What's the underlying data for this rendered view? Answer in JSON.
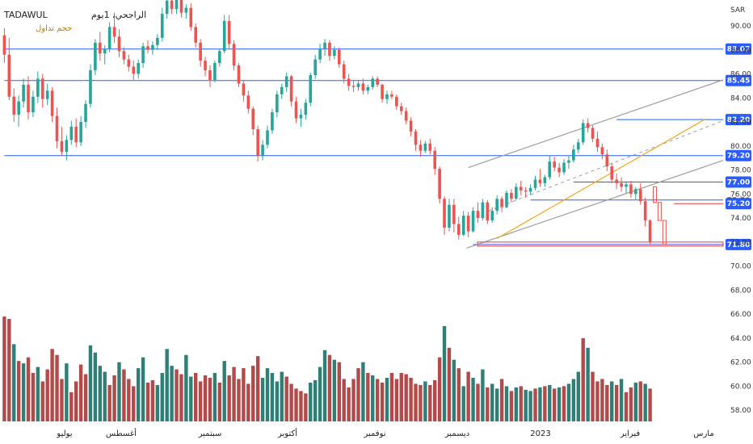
{
  "header": {
    "symbol": "TADAWUL",
    "title": "الراجحي، 1يوم",
    "volume_label": "حجم تداول"
  },
  "colors": {
    "up": "#26a69a",
    "down": "#ef5350",
    "vol_up": "#2f7f77",
    "vol_down": "#b24a4a",
    "level": "#2a5cff",
    "channel": "#9e9e9e",
    "trend": "#f5a623",
    "red_line": "#e53935",
    "badge_bg": "#2a5cff"
  },
  "chart_data": {
    "type": "candlestick",
    "currency": "SAR",
    "ylim": [
      57.5,
      92.5
    ],
    "y_ticks": [
      "90.00",
      "88.00",
      "86.00",
      "84.00",
      "82.00",
      "80.00",
      "78.00",
      "76.00",
      "74.00",
      "72.00",
      "70.00",
      "68.00",
      "66.00",
      "64.00",
      "62.00",
      "60.00",
      "58.00"
    ],
    "x_labels": [
      "يوليو",
      "أغسطس",
      "سبتمبر",
      "أكتوبر",
      "نوفمبر",
      "ديسمبر",
      "2023",
      "فبراير",
      "مارس"
    ],
    "levels": [
      {
        "label": "88.07",
        "value": 88.07,
        "style": "badge"
      },
      {
        "label": "85.45",
        "value": 85.45,
        "style": "badge"
      },
      {
        "label": "82.20",
        "value": 82.2,
        "style": "badge"
      },
      {
        "label": "79.20",
        "value": 79.2,
        "style": "badge"
      },
      {
        "label": "77.00",
        "value": 77.0,
        "style": "badge"
      },
      {
        "label": "75.50",
        "value": 75.5,
        "style": "plain"
      },
      {
        "label": "75.20",
        "value": 75.2,
        "style": "badge"
      },
      {
        "label": "71.80",
        "value": 71.8,
        "style": "badge"
      }
    ],
    "candles": [
      [
        89.2,
        89.8,
        86.9,
        87.6
      ],
      [
        87.6,
        89.0,
        83.8,
        84.1
      ],
      [
        84.1,
        84.8,
        82.0,
        82.6
      ],
      [
        82.6,
        84.2,
        81.6,
        83.7
      ],
      [
        83.7,
        85.6,
        83.2,
        85.1
      ],
      [
        85.1,
        85.8,
        82.2,
        82.8
      ],
      [
        82.8,
        84.6,
        82.4,
        84.1
      ],
      [
        84.1,
        86.2,
        83.6,
        85.6
      ],
      [
        85.6,
        86.0,
        83.2,
        83.9
      ],
      [
        83.9,
        85.2,
        83.4,
        84.6
      ],
      [
        84.6,
        84.9,
        82.0,
        82.5
      ],
      [
        82.5,
        83.2,
        79.8,
        80.4
      ],
      [
        80.4,
        81.6,
        79.2,
        79.5
      ],
      [
        79.5,
        80.9,
        78.8,
        80.5
      ],
      [
        80.5,
        82.1,
        80.1,
        81.6
      ],
      [
        81.6,
        82.3,
        79.9,
        80.3
      ],
      [
        80.3,
        82.5,
        80.0,
        82.0
      ],
      [
        82.0,
        83.8,
        81.5,
        83.5
      ],
      [
        83.5,
        86.8,
        83.2,
        86.3
      ],
      [
        86.3,
        88.9,
        85.9,
        88.6
      ],
      [
        88.6,
        89.5,
        87.1,
        87.7
      ],
      [
        87.7,
        88.4,
        86.8,
        88.1
      ],
      [
        88.1,
        90.3,
        87.8,
        89.9
      ],
      [
        89.9,
        91.1,
        88.6,
        89.1
      ],
      [
        89.1,
        89.7,
        87.4,
        87.9
      ],
      [
        87.9,
        88.2,
        86.8,
        87.2
      ],
      [
        87.2,
        87.6,
        86.2,
        86.6
      ],
      [
        86.6,
        87.1,
        85.5,
        86.0
      ],
      [
        86.0,
        87.2,
        85.6,
        86.9
      ],
      [
        86.9,
        88.6,
        86.5,
        88.3
      ],
      [
        88.3,
        88.8,
        87.7,
        88.0
      ],
      [
        88.0,
        88.7,
        87.6,
        88.4
      ],
      [
        88.4,
        89.3,
        88.0,
        89.0
      ],
      [
        89.0,
        91.5,
        88.7,
        91.0
      ],
      [
        91.0,
        92.6,
        90.6,
        92.1
      ],
      [
        92.1,
        92.6,
        91.0,
        91.4
      ],
      [
        91.4,
        92.5,
        91.0,
        92.2
      ],
      [
        92.2,
        92.3,
        90.7,
        91.1
      ],
      [
        91.1,
        91.8,
        90.6,
        91.5
      ],
      [
        91.5,
        91.9,
        89.6,
        89.9
      ],
      [
        89.9,
        90.2,
        88.2,
        88.6
      ],
      [
        88.6,
        88.9,
        86.6,
        87.1
      ],
      [
        87.1,
        87.4,
        85.8,
        86.3
      ],
      [
        86.3,
        86.7,
        84.9,
        85.5
      ],
      [
        85.5,
        87.1,
        85.3,
        86.9
      ],
      [
        86.9,
        88.1,
        86.6,
        87.9
      ],
      [
        87.9,
        90.9,
        87.7,
        90.4
      ],
      [
        90.4,
        90.9,
        88.1,
        88.5
      ],
      [
        88.5,
        88.8,
        86.3,
        86.7
      ],
      [
        86.7,
        86.9,
        84.9,
        85.2
      ],
      [
        85.2,
        85.4,
        83.7,
        84.2
      ],
      [
        84.2,
        84.6,
        82.7,
        83.1
      ],
      [
        83.1,
        83.3,
        80.9,
        81.4
      ],
      [
        81.4,
        81.7,
        78.7,
        79.2
      ],
      [
        79.2,
        80.5,
        78.8,
        80.1
      ],
      [
        80.1,
        81.7,
        79.8,
        81.3
      ],
      [
        81.3,
        83.1,
        81.0,
        82.8
      ],
      [
        82.8,
        84.6,
        82.4,
        84.3
      ],
      [
        84.3,
        85.2,
        83.9,
        84.9
      ],
      [
        84.9,
        86.1,
        84.5,
        85.8
      ],
      [
        85.8,
        85.9,
        83.3,
        83.7
      ],
      [
        83.7,
        84.1,
        81.9,
        82.3
      ],
      [
        82.3,
        83.1,
        81.6,
        82.6
      ],
      [
        82.6,
        83.9,
        82.2,
        83.6
      ],
      [
        83.6,
        86.1,
        83.3,
        85.9
      ],
      [
        85.9,
        87.6,
        85.6,
        87.2
      ],
      [
        87.2,
        88.5,
        86.9,
        88.1
      ],
      [
        88.1,
        88.9,
        87.5,
        88.6
      ],
      [
        88.6,
        88.8,
        87.1,
        87.5
      ],
      [
        87.5,
        88.3,
        87.2,
        88.0
      ],
      [
        88.0,
        88.2,
        86.5,
        86.8
      ],
      [
        86.8,
        87.1,
        85.2,
        85.6
      ],
      [
        85.6,
        86.0,
        84.6,
        85.0
      ],
      [
        85.0,
        85.5,
        84.5,
        84.9
      ],
      [
        84.9,
        85.4,
        84.6,
        85.2
      ],
      [
        85.2,
        85.6,
        84.3,
        84.6
      ],
      [
        84.6,
        85.1,
        84.3,
        84.9
      ],
      [
        84.9,
        85.8,
        84.7,
        85.6
      ],
      [
        85.6,
        85.8,
        84.9,
        85.1
      ],
      [
        85.1,
        85.2,
        83.6,
        83.9
      ],
      [
        83.9,
        84.6,
        83.5,
        84.3
      ],
      [
        84.3,
        84.6,
        83.9,
        84.1
      ],
      [
        84.1,
        84.3,
        83.0,
        83.3
      ],
      [
        83.3,
        83.6,
        82.6,
        82.9
      ],
      [
        82.9,
        83.2,
        81.8,
        82.1
      ],
      [
        82.1,
        82.4,
        80.8,
        81.2
      ],
      [
        81.2,
        81.4,
        79.6,
        80.1
      ],
      [
        80.1,
        80.5,
        79.1,
        79.6
      ],
      [
        79.6,
        80.4,
        79.4,
        80.2
      ],
      [
        80.2,
        80.6,
        79.3,
        79.6
      ],
      [
        79.6,
        79.9,
        77.6,
        78.1
      ],
      [
        78.1,
        78.3,
        75.2,
        75.6
      ],
      [
        75.6,
        75.8,
        72.6,
        73.2
      ],
      [
        73.2,
        75.6,
        72.9,
        75.1
      ],
      [
        75.1,
        75.6,
        72.8,
        73.5
      ],
      [
        73.5,
        74.1,
        72.2,
        72.6
      ],
      [
        72.6,
        74.6,
        72.5,
        74.2
      ],
      [
        74.2,
        74.5,
        72.4,
        72.9
      ],
      [
        72.9,
        74.9,
        72.8,
        74.6
      ],
      [
        74.6,
        75.3,
        73.6,
        74.0
      ],
      [
        74.0,
        75.6,
        73.8,
        75.3
      ],
      [
        75.3,
        75.5,
        73.5,
        73.8
      ],
      [
        73.8,
        74.9,
        73.6,
        74.6
      ],
      [
        74.6,
        75.9,
        74.3,
        75.6
      ],
      [
        75.6,
        75.8,
        74.5,
        74.9
      ],
      [
        74.9,
        76.3,
        74.8,
        76.1
      ],
      [
        76.1,
        76.4,
        75.3,
        75.6
      ],
      [
        75.6,
        76.9,
        75.5,
        76.6
      ],
      [
        76.6,
        77.1,
        75.9,
        76.3
      ],
      [
        76.3,
        76.6,
        75.7,
        76.2
      ],
      [
        76.2,
        76.8,
        75.9,
        76.5
      ],
      [
        76.5,
        77.5,
        76.3,
        77.2
      ],
      [
        77.2,
        78.1,
        76.6,
        76.9
      ],
      [
        76.9,
        77.6,
        76.6,
        77.4
      ],
      [
        77.4,
        79.2,
        77.2,
        78.7
      ],
      [
        78.7,
        79.1,
        77.9,
        78.2
      ],
      [
        78.2,
        78.6,
        77.4,
        77.8
      ],
      [
        77.8,
        78.9,
        77.6,
        78.6
      ],
      [
        78.6,
        79.2,
        78.1,
        78.8
      ],
      [
        78.8,
        80.1,
        78.6,
        79.7
      ],
      [
        79.7,
        80.6,
        79.4,
        80.3
      ],
      [
        80.3,
        82.2,
        80.1,
        81.9
      ],
      [
        81.9,
        82.3,
        81.1,
        81.5
      ],
      [
        81.5,
        81.7,
        80.3,
        80.6
      ],
      [
        80.6,
        81.2,
        79.5,
        79.9
      ],
      [
        79.9,
        80.2,
        78.9,
        79.3
      ],
      [
        79.3,
        79.7,
        77.9,
        78.3
      ],
      [
        78.3,
        78.6,
        76.9,
        77.2
      ],
      [
        77.2,
        77.7,
        76.4,
        76.9
      ],
      [
        76.9,
        77.4,
        76.2,
        76.6
      ],
      [
        76.6,
        77.0,
        76.1,
        76.8
      ],
      [
        76.8,
        77.1,
        75.7,
        76.0
      ],
      [
        76.0,
        76.6,
        75.5,
        76.4
      ],
      [
        76.4,
        76.9,
        75.1,
        75.4
      ],
      [
        75.4,
        75.7,
        73.3,
        73.8
      ],
      [
        73.8,
        73.9,
        71.8,
        72.0
      ]
    ],
    "volumes": [
      [
        65.8,
        "d"
      ],
      [
        65.6,
        "d"
      ],
      [
        63.5,
        "u"
      ],
      [
        62.1,
        "d"
      ],
      [
        61.9,
        "u"
      ],
      [
        62.4,
        "d"
      ],
      [
        61.1,
        "d"
      ],
      [
        61.6,
        "u"
      ],
      [
        60.4,
        "d"
      ],
      [
        61.4,
        "d"
      ],
      [
        63.1,
        "d"
      ],
      [
        62.6,
        "d"
      ],
      [
        60.6,
        "d"
      ],
      [
        61.9,
        "u"
      ],
      [
        59.5,
        "d"
      ],
      [
        60.4,
        "d"
      ],
      [
        61.8,
        "d"
      ],
      [
        61.0,
        "d"
      ],
      [
        63.4,
        "u"
      ],
      [
        62.8,
        "u"
      ],
      [
        61.7,
        "u"
      ],
      [
        61.2,
        "u"
      ],
      [
        60.1,
        "d"
      ],
      [
        60.9,
        "d"
      ],
      [
        62.0,
        "u"
      ],
      [
        61.4,
        "d"
      ],
      [
        60.6,
        "d"
      ],
      [
        60.0,
        "d"
      ],
      [
        61.5,
        "u"
      ],
      [
        62.4,
        "u"
      ],
      [
        60.3,
        "d"
      ],
      [
        60.5,
        "d"
      ],
      [
        60.1,
        "u"
      ],
      [
        61.1,
        "u"
      ],
      [
        63.1,
        "u"
      ],
      [
        61.7,
        "u"
      ],
      [
        61.4,
        "d"
      ],
      [
        61.0,
        "d"
      ],
      [
        62.6,
        "u"
      ],
      [
        60.8,
        "u"
      ],
      [
        61.1,
        "d"
      ],
      [
        60.4,
        "d"
      ],
      [
        60.9,
        "d"
      ],
      [
        60.7,
        "d"
      ],
      [
        61.1,
        "u"
      ],
      [
        60.3,
        "d"
      ],
      [
        62.1,
        "u"
      ],
      [
        60.9,
        "d"
      ],
      [
        61.6,
        "d"
      ],
      [
        60.6,
        "d"
      ],
      [
        61.5,
        "d"
      ],
      [
        60.2,
        "d"
      ],
      [
        61.7,
        "d"
      ],
      [
        62.5,
        "d"
      ],
      [
        60.7,
        "u"
      ],
      [
        61.5,
        "u"
      ],
      [
        61.1,
        "u"
      ],
      [
        60.4,
        "u"
      ],
      [
        61.2,
        "u"
      ],
      [
        60.8,
        "d"
      ],
      [
        60.2,
        "d"
      ],
      [
        59.8,
        "d"
      ],
      [
        59.6,
        "d"
      ],
      [
        59.4,
        "d"
      ],
      [
        60.3,
        "u"
      ],
      [
        60.5,
        "u"
      ],
      [
        61.6,
        "u"
      ],
      [
        63.0,
        "u"
      ],
      [
        62.6,
        "d"
      ],
      [
        62.2,
        "u"
      ],
      [
        62.0,
        "d"
      ],
      [
        60.6,
        "d"
      ],
      [
        59.9,
        "d"
      ],
      [
        60.6,
        "d"
      ],
      [
        61.5,
        "d"
      ],
      [
        62.0,
        "u"
      ],
      [
        61.1,
        "d"
      ],
      [
        60.9,
        "u"
      ],
      [
        60.6,
        "d"
      ],
      [
        60.3,
        "d"
      ],
      [
        60.7,
        "u"
      ],
      [
        61.1,
        "d"
      ],
      [
        60.6,
        "d"
      ],
      [
        61.1,
        "d"
      ],
      [
        61.0,
        "d"
      ],
      [
        60.7,
        "d"
      ],
      [
        60.2,
        "d"
      ],
      [
        60.1,
        "d"
      ],
      [
        60.4,
        "u"
      ],
      [
        60.1,
        "d"
      ],
      [
        60.5,
        "d"
      ],
      [
        62.4,
        "d"
      ],
      [
        65.0,
        "u"
      ],
      [
        63.2,
        "d"
      ],
      [
        62.2,
        "u"
      ],
      [
        61.5,
        "d"
      ],
      [
        60.0,
        "u"
      ],
      [
        61.2,
        "d"
      ],
      [
        60.7,
        "u"
      ],
      [
        60.2,
        "d"
      ],
      [
        61.4,
        "u"
      ],
      [
        59.9,
        "d"
      ],
      [
        60.2,
        "u"
      ],
      [
        59.8,
        "u"
      ],
      [
        60.6,
        "d"
      ],
      [
        60.0,
        "u"
      ],
      [
        59.6,
        "d"
      ],
      [
        59.9,
        "u"
      ],
      [
        60.0,
        "d"
      ],
      [
        59.7,
        "u"
      ],
      [
        59.6,
        "u"
      ],
      [
        59.8,
        "d"
      ],
      [
        59.9,
        "u"
      ],
      [
        60.0,
        "d"
      ],
      [
        60.1,
        "u"
      ],
      [
        59.8,
        "d"
      ],
      [
        59.9,
        "u"
      ],
      [
        60.0,
        "d"
      ],
      [
        60.2,
        "u"
      ],
      [
        60.6,
        "u"
      ],
      [
        61.2,
        "u"
      ],
      [
        64.0,
        "d"
      ],
      [
        63.2,
        "u"
      ],
      [
        61.2,
        "d"
      ],
      [
        60.4,
        "d"
      ],
      [
        60.6,
        "d"
      ],
      [
        60.1,
        "d"
      ],
      [
        60.4,
        "u"
      ],
      [
        60.1,
        "d"
      ],
      [
        60.6,
        "u"
      ],
      [
        59.5,
        "d"
      ],
      [
        59.9,
        "d"
      ],
      [
        60.3,
        "u"
      ],
      [
        60.4,
        "d"
      ],
      [
        60.2,
        "u"
      ],
      [
        59.8,
        "d"
      ]
    ]
  }
}
